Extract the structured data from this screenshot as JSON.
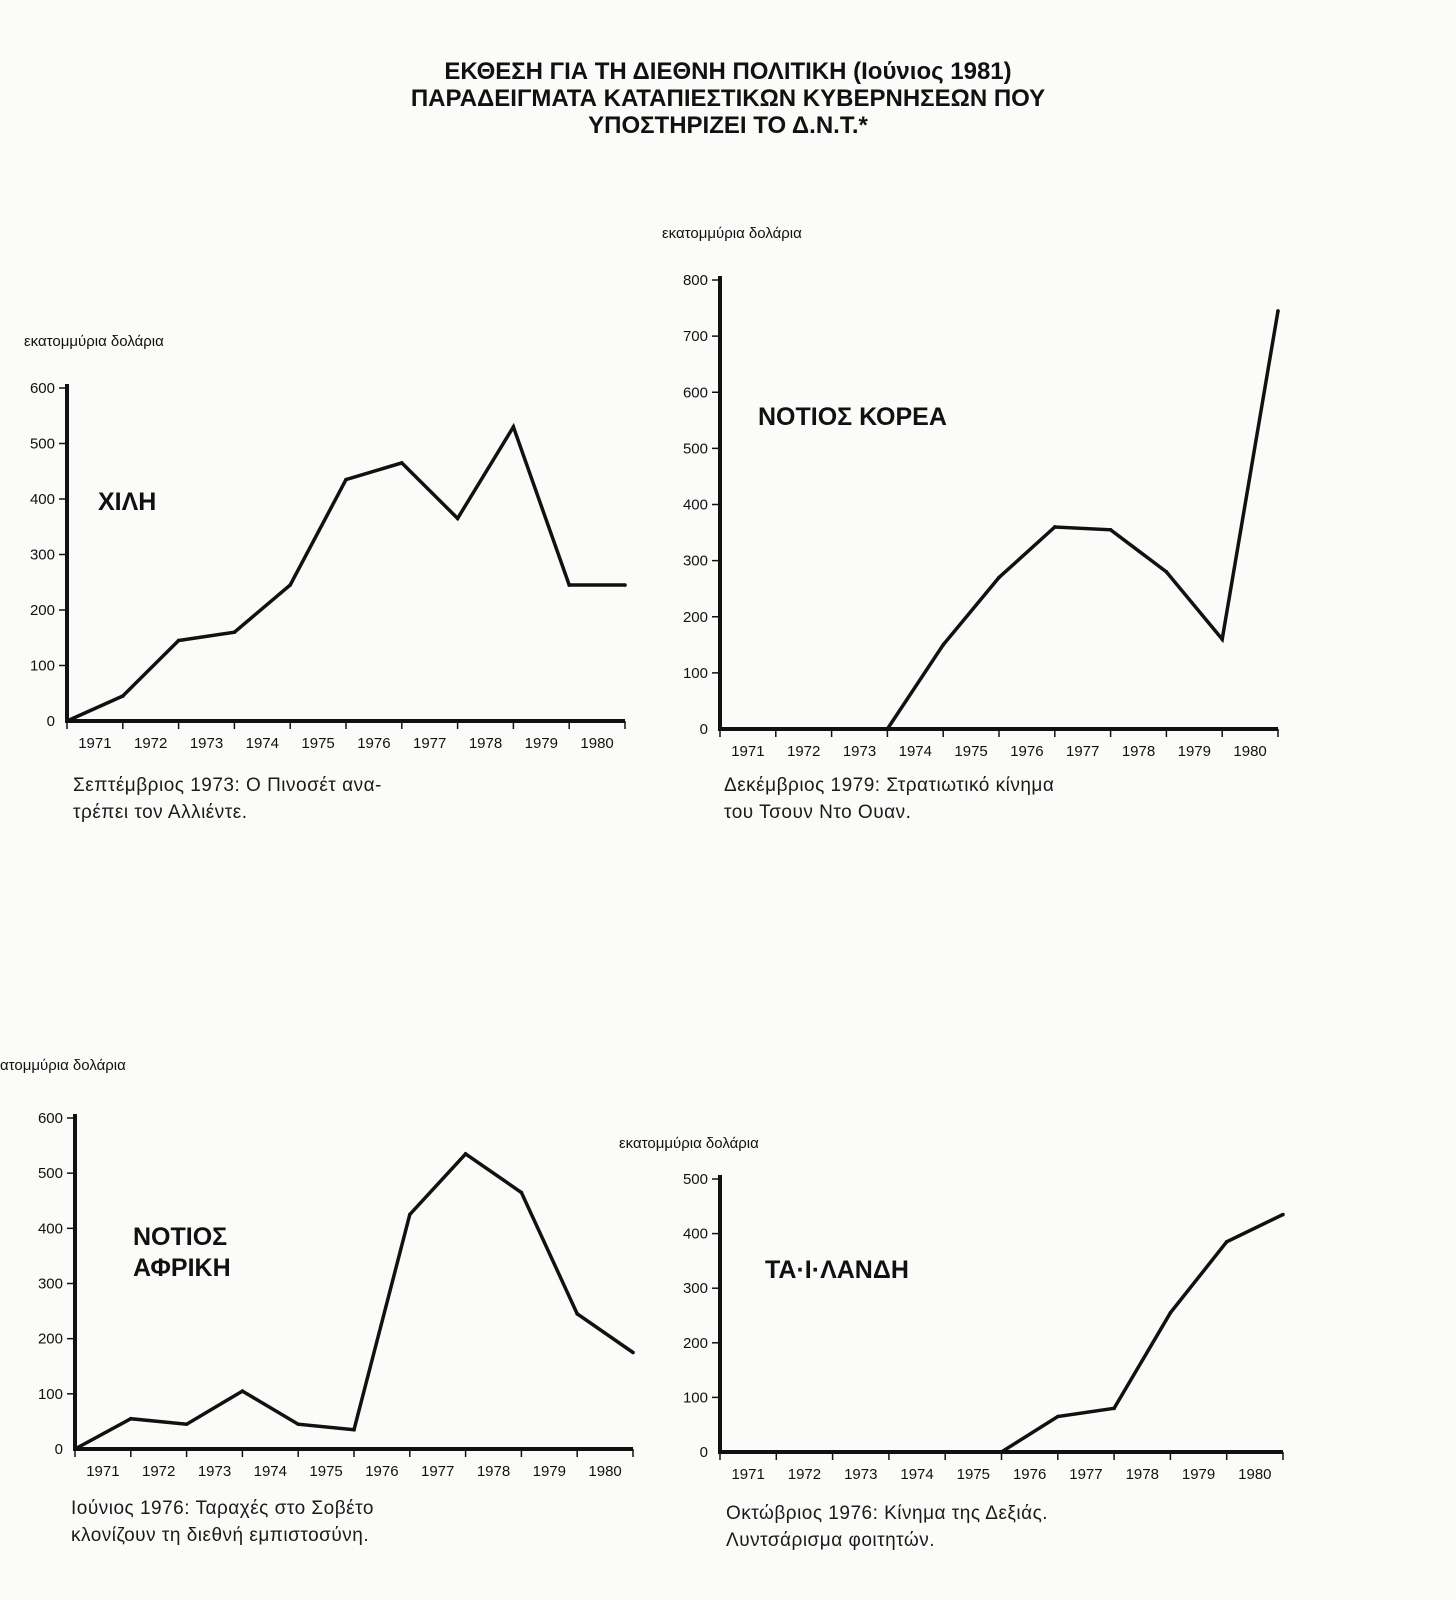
{
  "page": {
    "title_lines": [
      "ΕΚΘΕΣΗ ΓΙΑ ΤΗ ΔΙΕΘΝΗ ΠΟΛΙΤΙΚΗ (Ιούνιος 1981)",
      "ΠΑΡΑΔΕΙΓΜΑΤΑ ΚΑΤΑΠΙΕΣΤΙΚΩΝ ΚΥΒΕΡΝΗΣΕΩΝ ΠΟΥ",
      "ΥΠΟΣΤΗΡΙΖΕΙ ΤΟ Δ.Ν.Τ.*"
    ]
  },
  "chart_data": [
    {
      "type": "line",
      "title": "ΧΙΛΗ",
      "ylabel": "εκατομμύρια δολάρια",
      "xlabel": "",
      "categories": [
        "1971",
        "1972",
        "1973",
        "1974",
        "1975",
        "1976",
        "1977",
        "1978",
        "1979",
        "1980"
      ],
      "x": [
        1970.5,
        1971.5,
        1972.5,
        1973.5,
        1974.5,
        1975.5,
        1976.5,
        1977.5,
        1978.5,
        1979.5,
        1980.5
      ],
      "values": [
        0,
        45,
        145,
        160,
        245,
        435,
        465,
        365,
        530,
        245,
        245
      ],
      "yticks": [
        0,
        100,
        200,
        300,
        400,
        500,
        600
      ],
      "ylim": [
        0,
        600
      ],
      "grid": false,
      "caption_lines": [
        "Σεπτέμβριος 1973: Ο Πινοσέτ ανα-",
        "τρέπει τον Αλλιέντε."
      ]
    },
    {
      "type": "line",
      "title": "ΝΟΤΙΟΣ ΚΟΡΕΑ",
      "ylabel": "εκατομμύρια δολάρια",
      "xlabel": "",
      "categories": [
        "1971",
        "1972",
        "1973",
        "1974",
        "1975",
        "1976",
        "1977",
        "1978",
        "1979",
        "1980"
      ],
      "x": [
        1970.5,
        1971.5,
        1972.5,
        1973.5,
        1974.5,
        1975.5,
        1976.5,
        1977.5,
        1978.5,
        1979.5,
        1980.5
      ],
      "values": [
        0,
        0,
        0,
        0,
        150,
        270,
        360,
        355,
        280,
        160,
        745
      ],
      "yticks": [
        0,
        100,
        200,
        300,
        400,
        500,
        600,
        700,
        800
      ],
      "ylim": [
        0,
        800
      ],
      "grid": false,
      "caption_lines": [
        "Δεκέμβριος 1979: Στρατιωτικό κίνημα",
        "του Τσουν Ντο Ουαν."
      ]
    },
    {
      "type": "line",
      "title": "ΝΟΤΙΟΣ ΑΦΡΙΚΗ",
      "title_lines": [
        "ΝΟΤΙΟΣ",
        "ΑΦΡΙΚΗ"
      ],
      "ylabel": "εκατομμύρια δολάρια",
      "xlabel": "",
      "categories": [
        "1971",
        "1972",
        "1973",
        "1974",
        "1975",
        "1976",
        "1977",
        "1978",
        "1979",
        "1980"
      ],
      "x": [
        1970.5,
        1971.5,
        1972.5,
        1973.5,
        1974.5,
        1975.5,
        1976.5,
        1977.5,
        1978.5,
        1979.5,
        1980.5
      ],
      "values": [
        0,
        55,
        45,
        105,
        45,
        35,
        425,
        535,
        465,
        245,
        175
      ],
      "yticks": [
        0,
        100,
        200,
        300,
        400,
        500,
        600
      ],
      "ylim": [
        0,
        600
      ],
      "grid": false,
      "caption_lines": [
        "Ιούνιος 1976: Ταραχές στο Σοβέτο",
        "κλονίζουν τη διεθνή εμπιστοσύνη."
      ]
    },
    {
      "type": "line",
      "title": "ΤΑ·Ι·ΛΑΝΔΗ",
      "ylabel": "εκατομμύρια δολάρια",
      "xlabel": "",
      "categories": [
        "1971",
        "1972",
        "1973",
        "1974",
        "1975",
        "1976",
        "1977",
        "1978",
        "1979",
        "1980"
      ],
      "x": [
        1970.5,
        1971.5,
        1972.5,
        1973.5,
        1974.5,
        1975.5,
        1976.5,
        1977.5,
        1978.5,
        1979.5,
        1980.5
      ],
      "values": [
        0,
        0,
        0,
        0,
        0,
        0,
        65,
        80,
        255,
        385,
        435
      ],
      "yticks": [
        0,
        100,
        200,
        300,
        400,
        500
      ],
      "ylim": [
        0,
        500
      ],
      "grid": false,
      "caption_lines": [
        "Οκτώβριος 1976: Κίνημα της Δεξιάς.",
        "Λυντσάρισμα φοιτητών."
      ]
    }
  ]
}
